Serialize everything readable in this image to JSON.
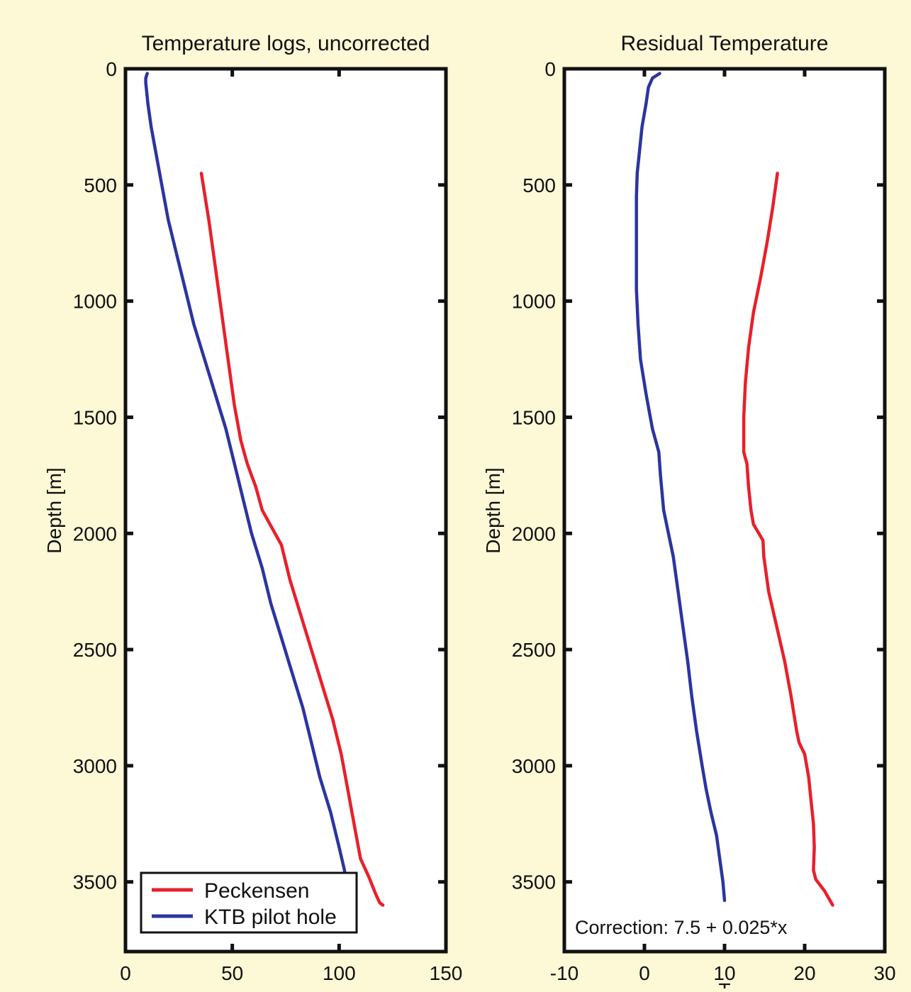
{
  "page": {
    "background": "#fdf8d6"
  },
  "chart_data": [
    {
      "type": "line",
      "title": "Temperature logs, uncorrected",
      "xlabel": "",
      "ylabel": "Depth [m]",
      "xlim": [
        0,
        150
      ],
      "ylim": [
        3800,
        0
      ],
      "y_reversed": true,
      "xticks": [
        0,
        50,
        100,
        150
      ],
      "yticks": [
        0,
        500,
        1000,
        1500,
        2000,
        2500,
        3000,
        3500
      ],
      "grid": false,
      "legend": {
        "position": "bottom-left",
        "entries": [
          {
            "label": "Peckensen",
            "color": "#e8202a"
          },
          {
            "label": "KTB pilot hole",
            "color": "#2b35a0"
          }
        ]
      },
      "series": [
        {
          "name": "Peckensen",
          "color": "#e8202a",
          "points": [
            [
              35.5,
              450
            ],
            [
              39,
              650
            ],
            [
              42,
              850
            ],
            [
              45,
              1050
            ],
            [
              48,
              1250
            ],
            [
              51,
              1450
            ],
            [
              54,
              1600
            ],
            [
              57,
              1700
            ],
            [
              61,
              1800
            ],
            [
              64,
              1900
            ],
            [
              67,
              1950
            ],
            [
              73,
              2050
            ],
            [
              77,
              2200
            ],
            [
              82,
              2350
            ],
            [
              87,
              2500
            ],
            [
              92,
              2650
            ],
            [
              97,
              2800
            ],
            [
              101,
              2950
            ],
            [
              104,
              3100
            ],
            [
              107,
              3250
            ],
            [
              110,
              3400
            ],
            [
              114,
              3480
            ],
            [
              117,
              3550
            ],
            [
              119,
              3590
            ],
            [
              120.5,
              3600
            ]
          ]
        },
        {
          "name": "KTB pilot hole",
          "color": "#2b35a0",
          "points": [
            [
              10.2,
              20
            ],
            [
              9.5,
              40
            ],
            [
              9.5,
              60
            ],
            [
              10.5,
              150
            ],
            [
              12,
              250
            ],
            [
              14,
              350
            ],
            [
              17,
              500
            ],
            [
              20,
              650
            ],
            [
              24,
              800
            ],
            [
              28,
              950
            ],
            [
              32,
              1100
            ],
            [
              37,
              1250
            ],
            [
              42,
              1400
            ],
            [
              47,
              1550
            ],
            [
              51,
              1700
            ],
            [
              55,
              1850
            ],
            [
              59,
              2000
            ],
            [
              64,
              2150
            ],
            [
              68,
              2300
            ],
            [
              73,
              2450
            ],
            [
              78,
              2600
            ],
            [
              83,
              2750
            ],
            [
              87,
              2900
            ],
            [
              91,
              3050
            ],
            [
              96,
              3200
            ],
            [
              100,
              3350
            ],
            [
              102.5,
              3450
            ],
            [
              103,
              3500
            ]
          ]
        }
      ]
    },
    {
      "type": "line",
      "title": "Residual Temperature",
      "xlabel": "T",
      "ylabel": "Depth [m]",
      "xlim": [
        -10,
        30
      ],
      "ylim": [
        3800,
        0
      ],
      "y_reversed": true,
      "xticks": [
        -10,
        0,
        10,
        20,
        30
      ],
      "yticks": [
        0,
        500,
        1000,
        1500,
        2000,
        2500,
        3000,
        3500
      ],
      "grid": false,
      "annotation": "Correction: 7.5 + 0.025*x",
      "series": [
        {
          "name": "Peckensen",
          "color": "#e8202a",
          "points": [
            [
              16.6,
              450
            ],
            [
              16.0,
              600
            ],
            [
              15.3,
              750
            ],
            [
              14.5,
              900
            ],
            [
              13.6,
              1050
            ],
            [
              13.0,
              1200
            ],
            [
              12.6,
              1350
            ],
            [
              12.4,
              1500
            ],
            [
              12.4,
              1650
            ],
            [
              12.8,
              1700
            ],
            [
              13.0,
              1800
            ],
            [
              13.3,
              1900
            ],
            [
              13.6,
              1960
            ],
            [
              14.8,
              2030
            ],
            [
              14.9,
              2100
            ],
            [
              15.5,
              2250
            ],
            [
              16.5,
              2400
            ],
            [
              17.5,
              2550
            ],
            [
              18.3,
              2700
            ],
            [
              19.0,
              2850
            ],
            [
              19.3,
              2900
            ],
            [
              20.0,
              2950
            ],
            [
              20.5,
              3050
            ],
            [
              20.8,
              3150
            ],
            [
              21.1,
              3250
            ],
            [
              21.2,
              3350
            ],
            [
              21.1,
              3450
            ],
            [
              21.4,
              3490
            ],
            [
              22.5,
              3540
            ],
            [
              23.5,
              3600
            ]
          ]
        },
        {
          "name": "KTB pilot hole",
          "color": "#2b35a0",
          "points": [
            [
              1.9,
              20
            ],
            [
              1.0,
              40
            ],
            [
              0.5,
              80
            ],
            [
              0.2,
              150
            ],
            [
              -0.3,
              250
            ],
            [
              -0.6,
              350
            ],
            [
              -0.9,
              450
            ],
            [
              -1.0,
              550
            ],
            [
              -1.0,
              650
            ],
            [
              -1.0,
              800
            ],
            [
              -1.0,
              950
            ],
            [
              -0.8,
              1100
            ],
            [
              -0.5,
              1250
            ],
            [
              0.2,
              1400
            ],
            [
              1.0,
              1550
            ],
            [
              1.8,
              1650
            ],
            [
              2.0,
              1750
            ],
            [
              2.4,
              1900
            ],
            [
              3.0,
              2000
            ],
            [
              3.6,
              2100
            ],
            [
              4.2,
              2250
            ],
            [
              4.8,
              2400
            ],
            [
              5.4,
              2550
            ],
            [
              5.9,
              2700
            ],
            [
              6.5,
              2850
            ],
            [
              7.2,
              3000
            ],
            [
              7.7,
              3100
            ],
            [
              8.3,
              3200
            ],
            [
              9.0,
              3300
            ],
            [
              9.4,
              3400
            ],
            [
              9.8,
              3500
            ],
            [
              10.0,
              3580
            ]
          ]
        }
      ]
    }
  ]
}
